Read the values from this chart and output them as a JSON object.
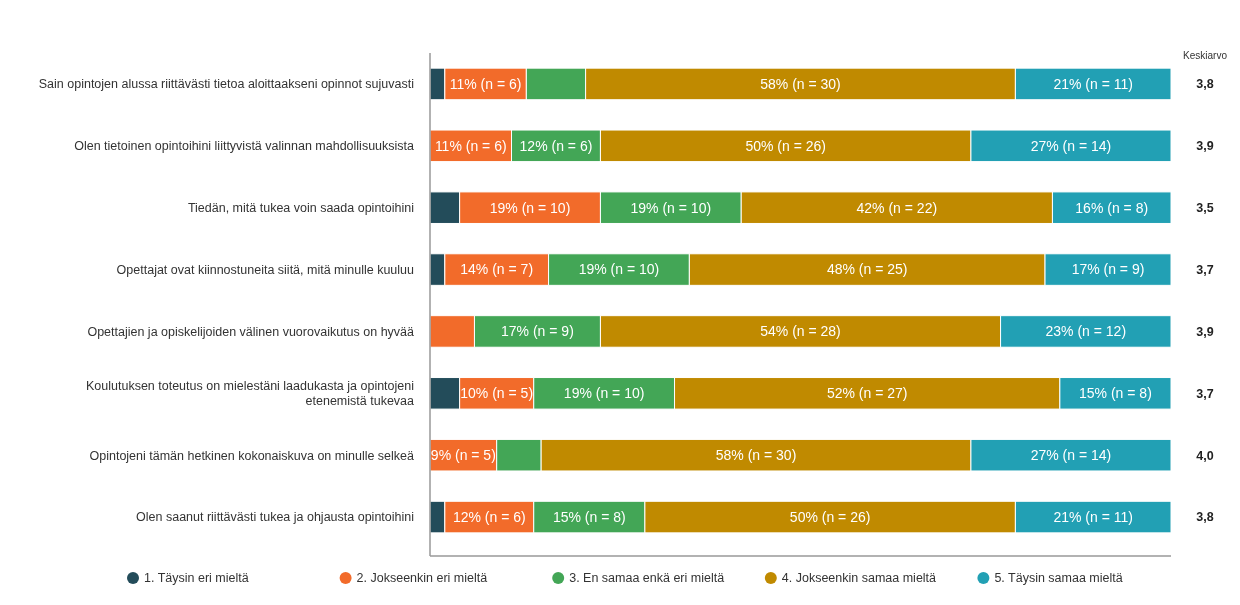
{
  "chart_data": {
    "type": "bar",
    "orientation": "horizontal",
    "stacked": true,
    "xlim": [
      0,
      100
    ],
    "legend": "bottom",
    "categories": [
      "Sain opintojen alussa riittävästi tietoa aloittaakseni opinnot sujuvasti",
      "Olen tietoinen opintoihini liittyvistä valinnan mahdollisuuksista",
      "Tiedän, mitä tukea voin saada opintoihini",
      "Opettajat ovat kiinnostuneita siitä, mitä minulle kuuluu",
      "Opettajien ja opiskelijoiden välinen vuorovaikutus on hyvää",
      "Koulutuksen toteutus on mielestäni laadukasta ja opintojeni etenemistä tukevaa",
      "Opintojeni tämän hetkinen kokonaiskuva on minulle selkeä",
      "Olen saanut riittävästi tukea ja ohjausta opintoihini"
    ],
    "series": [
      {
        "name": "1. Täysin eri mieltä",
        "color": "#234c5a",
        "values": [
          2,
          0,
          4,
          2,
          0,
          4,
          0,
          2
        ],
        "value_labels": [
          null,
          null,
          null,
          null,
          null,
          null,
          null,
          null
        ]
      },
      {
        "name": "2. Jokseenkin eri mieltä",
        "color": "#f26b2a",
        "values": [
          11,
          11,
          19,
          14,
          6,
          10,
          9,
          12
        ],
        "value_labels": [
          "11% (n = 6)",
          "11% (n = 6)",
          "19% (n = 10)",
          "14% (n = 7)",
          null,
          "10% (n = 5)",
          "9% (n = 5)",
          "12% (n = 6)"
        ]
      },
      {
        "name": "3. En samaa enkä eri mieltä",
        "color": "#43a656",
        "values": [
          8,
          12,
          19,
          19,
          17,
          19,
          6,
          15
        ],
        "value_labels": [
          null,
          "12% (n = 6)",
          "19% (n = 10)",
          "19% (n = 10)",
          "17% (n = 9)",
          "19% (n = 10)",
          null,
          "15% (n = 8)"
        ]
      },
      {
        "name": "4. Jokseenkin samaa mieltä",
        "color": "#c08a00",
        "values": [
          58,
          50,
          42,
          48,
          54,
          52,
          58,
          50
        ],
        "value_labels": [
          "58% (n = 30)",
          "50% (n = 26)",
          "42% (n = 22)",
          "48% (n = 25)",
          "54% (n = 28)",
          "52% (n = 27)",
          "58% (n = 30)",
          "50% (n = 26)"
        ]
      },
      {
        "name": "5. Täysin samaa mieltä",
        "color": "#22a0b4",
        "values": [
          21,
          27,
          16,
          17,
          23,
          15,
          27,
          21
        ],
        "value_labels": [
          "21% (n = 11)",
          "27% (n = 14)",
          "16% (n = 8)",
          "17% (n = 9)",
          "23% (n = 12)",
          "15% (n = 8)",
          "27% (n = 14)",
          "21% (n = 11)"
        ]
      }
    ],
    "annotations": [
      "Keskiarvo",
      "3,8",
      "3,9",
      "3,5",
      "3,7",
      "3,9",
      "3,7",
      "4,0",
      "3,8"
    ]
  }
}
